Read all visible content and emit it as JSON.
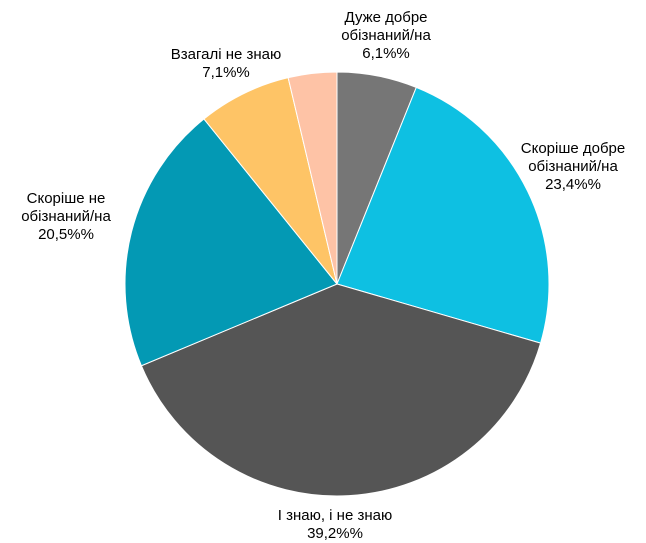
{
  "chart_data": {
    "type": "pie",
    "start": "12 o'clock",
    "direction": "clockwise",
    "slices": [
      {
        "label": [
          "Дуже добре",
          "обізнаний/на"
        ],
        "value": 6.1,
        "value_label": "6,1%%",
        "color": "#767676"
      },
      {
        "label": [
          "Скоріше добре",
          "обізнаний/на"
        ],
        "value": 23.4,
        "value_label": "23,4%%",
        "color": "#0EC0E2"
      },
      {
        "label": [
          "І знаю, і не знаю"
        ],
        "value": 39.2,
        "value_label": "39,2%%",
        "color": "#555555"
      },
      {
        "label": [
          "Скоріше не",
          "обізнаний/на"
        ],
        "value": 20.5,
        "value_label": "20,5%%",
        "color": "#0399B4"
      },
      {
        "label": [
          "Взагалі не знаю"
        ],
        "value": 7.1,
        "value_label": "7,1%%",
        "color": "#FEC466"
      },
      {
        "label": [
          ""
        ],
        "value": 3.7,
        "value_label": "",
        "color": "#FEC3A6"
      }
    ]
  }
}
